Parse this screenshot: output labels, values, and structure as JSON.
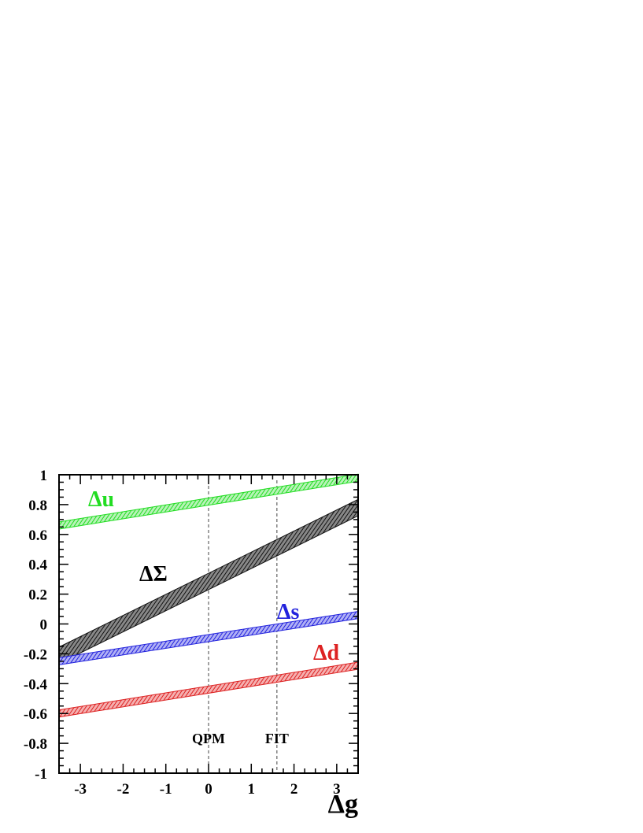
{
  "chart_data": {
    "type": "line",
    "title": "",
    "xlabel": "Δg",
    "ylabel": "",
    "xlim": [
      -3.5,
      3.5
    ],
    "ylim": [
      -1,
      1
    ],
    "x_ticks": [
      -3,
      -2,
      -1,
      0,
      1,
      2,
      3
    ],
    "y_ticks": [
      1,
      0.8,
      0.6,
      0.4,
      0.2,
      0,
      -0.2,
      -0.4,
      -0.6,
      -0.8,
      -1
    ],
    "grid": false,
    "series": [
      {
        "name": "Δu",
        "color": "#22dd22",
        "x": [
          -3.5,
          3.5
        ],
        "y": [
          0.66,
          0.98
        ],
        "band_width": 0.024
      },
      {
        "name": "ΔΣ",
        "color": "#111111",
        "x": [
          -3.5,
          3.5
        ],
        "y": [
          -0.21,
          0.78
        ],
        "band_width": 0.055
      },
      {
        "name": "Δs",
        "color": "#2222dd",
        "x": [
          -3.5,
          3.5
        ],
        "y": [
          -0.25,
          0.06
        ],
        "band_width": 0.024
      },
      {
        "name": "Δd",
        "color": "#dd2222",
        "x": [
          -3.5,
          3.5
        ],
        "y": [
          -0.6,
          -0.28
        ],
        "band_width": 0.024
      }
    ],
    "markers": [
      {
        "label": "QPM",
        "x": 0
      },
      {
        "label": "FIT",
        "x": 1.6
      }
    ]
  }
}
